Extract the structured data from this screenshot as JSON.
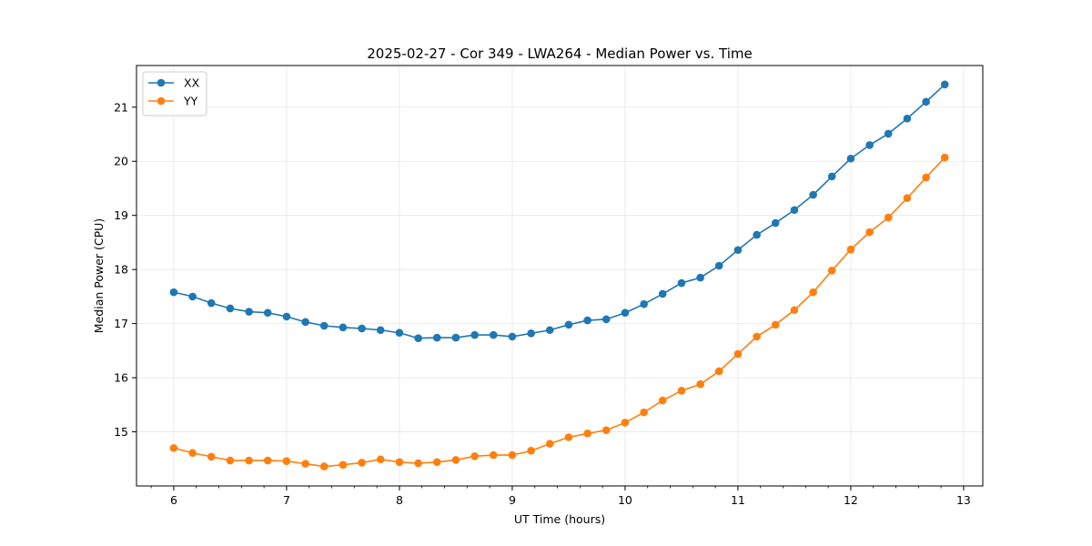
{
  "chart_data": {
    "type": "line",
    "title": "2025-02-27 - Cor 349 - LWA264 - Median Power vs. Time",
    "xlabel": "UT Time (hours)",
    "ylabel": "Median Power (CPU)",
    "xlim": [
      5.67,
      13.17
    ],
    "ylim": [
      14.0,
      21.77
    ],
    "x_ticks": [
      "6",
      "7",
      "8",
      "9",
      "10",
      "11",
      "12",
      "13"
    ],
    "y_ticks": [
      "15",
      "16",
      "17",
      "18",
      "19",
      "20",
      "21"
    ],
    "grid": true,
    "legend_position": "upper-left",
    "x": [
      6.0,
      6.167,
      6.333,
      6.5,
      6.667,
      6.833,
      7.0,
      7.167,
      7.333,
      7.5,
      7.667,
      7.833,
      8.0,
      8.167,
      8.333,
      8.5,
      8.667,
      8.833,
      9.0,
      9.167,
      9.333,
      9.5,
      9.667,
      9.833,
      10.0,
      10.167,
      10.333,
      10.5,
      10.667,
      10.833,
      11.0,
      11.167,
      11.333,
      11.5,
      11.667,
      11.833,
      12.0,
      12.167,
      12.333,
      12.5,
      12.667,
      12.833
    ],
    "series": [
      {
        "name": "XX",
        "color": "#1f77b4",
        "values": [
          17.58,
          17.5,
          17.38,
          17.28,
          17.22,
          17.2,
          17.13,
          17.03,
          16.96,
          16.93,
          16.91,
          16.88,
          16.83,
          16.73,
          16.74,
          16.74,
          16.79,
          16.79,
          16.76,
          16.82,
          16.88,
          16.98,
          17.06,
          17.08,
          17.2,
          17.36,
          17.55,
          17.75,
          17.85,
          18.07,
          18.36,
          18.64,
          18.86,
          19.1,
          19.38,
          19.72,
          20.05,
          20.3,
          20.51,
          20.79,
          21.1,
          21.42
        ]
      },
      {
        "name": "YY",
        "color": "#ff7f0e",
        "values": [
          14.7,
          14.61,
          14.54,
          14.47,
          14.47,
          14.47,
          14.46,
          14.41,
          14.36,
          14.39,
          14.43,
          14.49,
          14.44,
          14.42,
          14.44,
          14.48,
          14.55,
          14.57,
          14.57,
          14.65,
          14.78,
          14.9,
          14.97,
          15.03,
          15.17,
          15.36,
          15.58,
          15.76,
          15.88,
          16.12,
          16.44,
          16.76,
          16.98,
          17.25,
          17.58,
          17.98,
          18.37,
          18.69,
          18.96,
          19.32,
          19.7,
          20.07
        ]
      }
    ]
  }
}
